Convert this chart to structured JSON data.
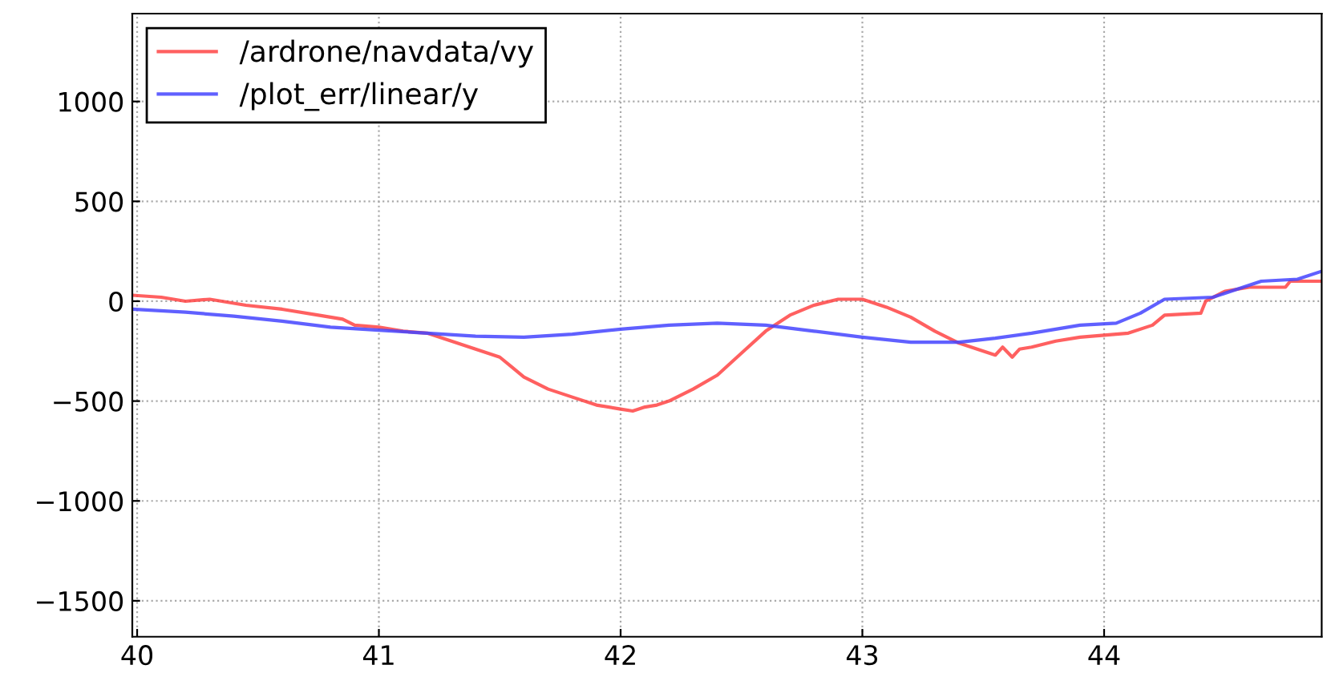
{
  "chart_data": {
    "type": "line",
    "xlim": [
      39.98,
      44.9
    ],
    "ylim": [
      -1680,
      1440
    ],
    "xticks": [
      40,
      41,
      42,
      43,
      44
    ],
    "yticks": [
      -1500,
      -1000,
      -500,
      0,
      500,
      1000
    ],
    "grid": true,
    "legend": "top left",
    "line_style": "solid",
    "series": [
      {
        "name": "/ardrone/navdata/vy",
        "color": "#ff4444",
        "x": [
          39.98,
          40.1,
          40.2,
          40.3,
          40.45,
          40.6,
          40.75,
          40.85,
          40.9,
          41.0,
          41.1,
          41.2,
          41.3,
          41.4,
          41.5,
          41.55,
          41.6,
          41.65,
          41.7,
          41.8,
          41.9,
          42.0,
          42.05,
          42.1,
          42.15,
          42.2,
          42.3,
          42.4,
          42.5,
          42.6,
          42.7,
          42.8,
          42.9,
          43.0,
          43.1,
          43.2,
          43.3,
          43.4,
          43.5,
          43.55,
          43.58,
          43.62,
          43.65,
          43.7,
          43.8,
          43.9,
          44.0,
          44.1,
          44.2,
          44.25,
          44.4,
          44.42,
          44.5,
          44.6,
          44.75,
          44.77,
          44.9
        ],
        "values": [
          30,
          20,
          0,
          10,
          -20,
          -40,
          -70,
          -90,
          -120,
          -130,
          -150,
          -160,
          -200,
          -240,
          -280,
          -330,
          -380,
          -410,
          -440,
          -480,
          -520,
          -540,
          -550,
          -530,
          -520,
          -500,
          -440,
          -370,
          -260,
          -150,
          -70,
          -20,
          10,
          10,
          -30,
          -80,
          -150,
          -210,
          -250,
          -270,
          -230,
          -280,
          -240,
          -230,
          -200,
          -180,
          -170,
          -160,
          -120,
          -70,
          -60,
          0,
          50,
          70,
          70,
          100,
          100
        ]
      },
      {
        "name": "/plot_err/linear/y",
        "color": "#4444ff",
        "x": [
          39.98,
          40.2,
          40.4,
          40.6,
          40.8,
          41.0,
          41.2,
          41.4,
          41.6,
          41.8,
          42.0,
          42.2,
          42.4,
          42.6,
          42.8,
          43.0,
          43.2,
          43.4,
          43.55,
          43.7,
          43.9,
          44.05,
          44.15,
          44.25,
          44.45,
          44.55,
          44.65,
          44.8,
          44.9
        ],
        "values": [
          -40,
          -55,
          -75,
          -100,
          -130,
          -145,
          -160,
          -175,
          -180,
          -165,
          -140,
          -120,
          -110,
          -120,
          -150,
          -180,
          -205,
          -205,
          -185,
          -160,
          -120,
          -110,
          -60,
          10,
          20,
          60,
          100,
          110,
          150
        ]
      }
    ]
  }
}
